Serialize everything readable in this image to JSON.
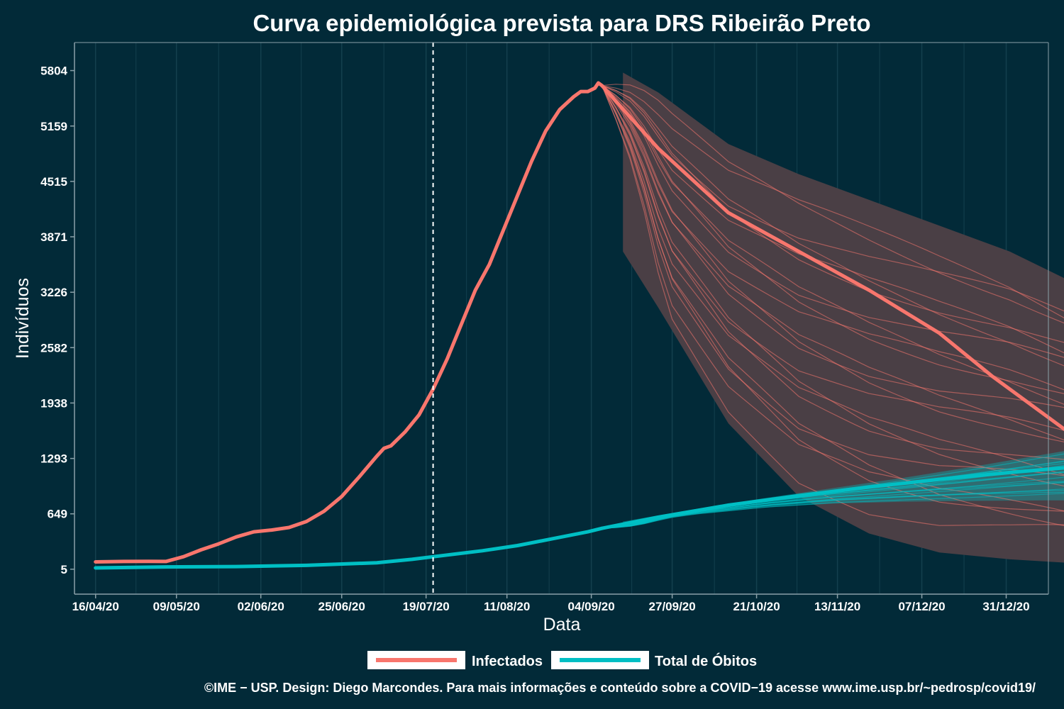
{
  "chart_data": {
    "type": "line",
    "title": "Curva epidemiológica prevista para DRS Ribeirão Preto",
    "xlabel": "Data",
    "ylabel": "Indivíduos",
    "x_ticks": [
      "16/04/20",
      "09/05/20",
      "02/06/20",
      "25/06/20",
      "19/07/20",
      "11/08/20",
      "04/09/20",
      "27/09/20",
      "21/10/20",
      "13/11/20",
      "07/12/20",
      "31/12/20"
    ],
    "y_ticks": [
      "5804",
      "5159",
      "4515",
      "3871",
      "3226",
      "2582",
      "1938",
      "1293",
      "649",
      "5"
    ],
    "y_tick_values": [
      5804,
      5159,
      4515,
      3871,
      3226,
      2582,
      1938,
      1293,
      649,
      5
    ],
    "ylim": [
      -285,
      6130
    ],
    "x_range_days_from_first_tick": [
      -6,
      271
    ],
    "forecast_start_date": "21/07/20",
    "legend_position": "bottom",
    "grid": true,
    "colors": {
      "background": "#022a38",
      "grid": "#14404e",
      "axis": "#8aa0a8",
      "infected": "#f8766d",
      "deaths": "#00bfc4",
      "band": "#4a3f45",
      "vline": "#ffffff"
    },
    "series": [
      {
        "name": "Infectados",
        "observed": [
          [
            0,
            90
          ],
          [
            8,
            95
          ],
          [
            15,
            97
          ],
          [
            20,
            95
          ],
          [
            25,
            150
          ],
          [
            30,
            230
          ],
          [
            35,
            300
          ],
          [
            40,
            380
          ],
          [
            45,
            440
          ],
          [
            50,
            460
          ],
          [
            55,
            490
          ],
          [
            60,
            560
          ],
          [
            65,
            680
          ],
          [
            70,
            850
          ],
          [
            75,
            1080
          ],
          [
            80,
            1320
          ],
          [
            82,
            1410
          ],
          [
            84,
            1440
          ],
          [
            88,
            1600
          ],
          [
            92,
            1800
          ],
          [
            96,
            2100
          ],
          [
            100,
            2450
          ],
          [
            104,
            2850
          ],
          [
            108,
            3250
          ],
          [
            112,
            3550
          ],
          [
            116,
            3950
          ],
          [
            120,
            4350
          ],
          [
            124,
            4750
          ],
          [
            128,
            5100
          ],
          [
            132,
            5350
          ],
          [
            136,
            5500
          ],
          [
            138,
            5560
          ],
          [
            140,
            5560
          ],
          [
            142,
            5600
          ],
          [
            143,
            5660
          ],
          [
            144,
            5630
          ]
        ],
        "forecast_median": [
          [
            144,
            5630
          ],
          [
            160,
            4900
          ],
          [
            180,
            4150
          ],
          [
            200,
            3700
          ],
          [
            220,
            3250
          ],
          [
            240,
            2750
          ],
          [
            255,
            2250
          ],
          [
            270,
            1800
          ],
          [
            280,
            1500
          ],
          [
            290,
            1230
          ],
          [
            300,
            1000
          ],
          [
            310,
            820
          ],
          [
            320,
            680
          ],
          [
            330,
            570
          ],
          [
            340,
            500
          ],
          [
            350,
            440
          ]
        ],
        "band_upper": [
          [
            150,
            5780
          ],
          [
            160,
            5550
          ],
          [
            180,
            4950
          ],
          [
            200,
            4600
          ],
          [
            220,
            4300
          ],
          [
            240,
            4000
          ],
          [
            260,
            3700
          ],
          [
            280,
            3300
          ],
          [
            300,
            2800
          ],
          [
            320,
            2200
          ],
          [
            340,
            1600
          ],
          [
            350,
            1200
          ],
          [
            356,
            950
          ]
        ],
        "band_lower": [
          [
            150,
            3700
          ],
          [
            160,
            3050
          ],
          [
            180,
            1700
          ],
          [
            200,
            850
          ],
          [
            220,
            420
          ],
          [
            240,
            200
          ],
          [
            260,
            120
          ],
          [
            280,
            70
          ],
          [
            300,
            40
          ],
          [
            320,
            25
          ],
          [
            340,
            15
          ],
          [
            356,
            10
          ]
        ]
      },
      {
        "name": "Total de Óbitos",
        "observed": [
          [
            0,
            20
          ],
          [
            20,
            32
          ],
          [
            40,
            36
          ],
          [
            60,
            50
          ],
          [
            80,
            80
          ],
          [
            90,
            120
          ],
          [
            100,
            170
          ],
          [
            110,
            220
          ],
          [
            120,
            280
          ],
          [
            130,
            360
          ],
          [
            140,
            440
          ],
          [
            144,
            480
          ]
        ],
        "forecast_median": [
          [
            144,
            480
          ],
          [
            160,
            610
          ],
          [
            180,
            750
          ],
          [
            200,
            860
          ],
          [
            220,
            960
          ],
          [
            240,
            1050
          ],
          [
            260,
            1130
          ],
          [
            280,
            1200
          ],
          [
            300,
            1250
          ],
          [
            320,
            1290
          ],
          [
            340,
            1320
          ],
          [
            356,
            1345
          ]
        ],
        "band_upper": [
          [
            150,
            560
          ],
          [
            170,
            700
          ],
          [
            190,
            830
          ],
          [
            210,
            950
          ],
          [
            230,
            1070
          ],
          [
            250,
            1200
          ],
          [
            270,
            1340
          ],
          [
            290,
            1480
          ],
          [
            310,
            1600
          ],
          [
            330,
            1700
          ],
          [
            350,
            1790
          ],
          [
            356,
            1830
          ]
        ],
        "band_lower": [
          [
            150,
            520
          ],
          [
            170,
            640
          ],
          [
            190,
            720
          ],
          [
            210,
            770
          ],
          [
            230,
            790
          ],
          [
            250,
            800
          ],
          [
            270,
            805
          ],
          [
            290,
            808
          ],
          [
            310,
            810
          ],
          [
            330,
            812
          ],
          [
            350,
            813
          ],
          [
            356,
            813
          ]
        ]
      }
    ]
  },
  "legend": {
    "items": [
      {
        "label": "Infectados",
        "color": "#f8766d"
      },
      {
        "label": "Total de Óbitos",
        "color": "#00bfc4"
      }
    ]
  },
  "caption": "©IME − USP. Design: Diego Marcondes. Para mais informações e conteúdo sobre a COVID−19 acesse www.ime.usp.br/~pedrosp/covid19/"
}
